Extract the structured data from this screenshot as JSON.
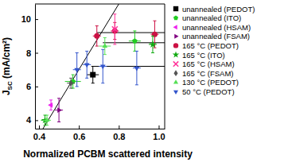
{
  "chart_data": {
    "type": "scatter",
    "xlabel": "Normalized PCBM scattered intensity",
    "ylabel": "JSC (mA/cm²)",
    "xlim": [
      0.38,
      1.03
    ],
    "ylim": [
      3.5,
      10.9
    ],
    "xticks": [
      0.4,
      0.6,
      0.8,
      {
        "value": 1,
        "label": "1.0"
      }
    ],
    "yticks": [
      4,
      6,
      8,
      10
    ],
    "legend": "right",
    "series": [
      {
        "name": "unannealed (PEDOT)",
        "color": "#000000",
        "marker": "square",
        "x": [
          0.67
        ],
        "values": [
          6.7
        ],
        "xerr": [
          0.03
        ],
        "yerr": [
          0.5
        ]
      },
      {
        "name": "unannealed (ITO)",
        "color": "#22cc22",
        "marker": "pentagon",
        "x": [
          0.57,
          0.88
        ],
        "values": [
          6.3,
          8.7
        ],
        "xerr": [
          0.04,
          0.03
        ],
        "yerr": [
          0.4,
          0.6
        ]
      },
      {
        "name": "unannealed (HSAM)",
        "color": "#ee22ee",
        "marker": "triangle-left",
        "x": [
          0.46
        ],
        "values": [
          4.9
        ],
        "xerr": [
          0.01
        ],
        "yerr": [
          0.3
        ]
      },
      {
        "name": "unannealed (FSAM)",
        "color": "#800080",
        "marker": "triangle-right",
        "x": [
          0.5
        ],
        "values": [
          4.6
        ],
        "xerr": [
          0.02
        ],
        "yerr": [
          0.7
        ]
      },
      {
        "name": "165 °C (PEDOT)",
        "color": "#cc1144",
        "marker": "circle",
        "x": [
          0.69,
          0.78,
          0.98
        ],
        "values": [
          9.0,
          9.3,
          9.1
        ],
        "xerr": [
          0.02,
          0.02,
          0.02
        ],
        "yerr": [
          0.6,
          0.5,
          0.8
        ]
      },
      {
        "name": "165 °C (ITO)",
        "color": "#11aa11",
        "marker": "star",
        "x": [
          0.43,
          0.97
        ],
        "values": [
          4.0,
          8.5
        ],
        "xerr": [
          0.02,
          0.02
        ],
        "yerr": [
          0.3,
          0.5
        ]
      },
      {
        "name": "165 °C (HSAM)",
        "color": "#ff3399",
        "marker": "x",
        "x": [
          0.78
        ],
        "values": [
          9.4
        ],
        "xerr": [
          0.01
        ],
        "yerr": [
          0.9
        ]
      },
      {
        "name": "165 °C (FSAM)",
        "color": "#555555",
        "marker": "diamond",
        "x": [
          0.56
        ],
        "values": [
          6.2
        ],
        "xerr": [
          0.02
        ],
        "yerr": [
          0.3
        ]
      },
      {
        "name": "130 °C (PEDOT)",
        "color": "#55e055",
        "marker": "triangle-up",
        "x": [
          0.44,
          0.73
        ],
        "values": [
          4.0,
          8.4
        ],
        "xerr": [
          0.02,
          0.03
        ],
        "yerr": [
          0.3,
          0.5
        ]
      },
      {
        "name": "50 °C (PEDOT)",
        "color": "#3355cc",
        "marker": "triangle-down",
        "x": [
          0.59,
          0.64,
          0.72,
          0.89
        ],
        "values": [
          7.0,
          7.3,
          7.2,
          7.1
        ],
        "xerr": [
          0.02,
          0.02,
          0.02,
          0.02
        ],
        "yerr": [
          1.0,
          0.8,
          1.0,
          1.0
        ]
      }
    ],
    "fit_lines": [
      {
        "x": [
          0.42,
          0.8
        ],
        "y": [
          3.5,
          10.9
        ]
      },
      {
        "x": [
          0.69,
          1.03
        ],
        "y": [
          9.2,
          9.2
        ]
      },
      {
        "x": [
          0.72,
          1.03
        ],
        "y": [
          8.6,
          8.6
        ]
      },
      {
        "x": [
          0.67,
          1.03
        ],
        "y": [
          7.2,
          7.2
        ]
      }
    ]
  }
}
